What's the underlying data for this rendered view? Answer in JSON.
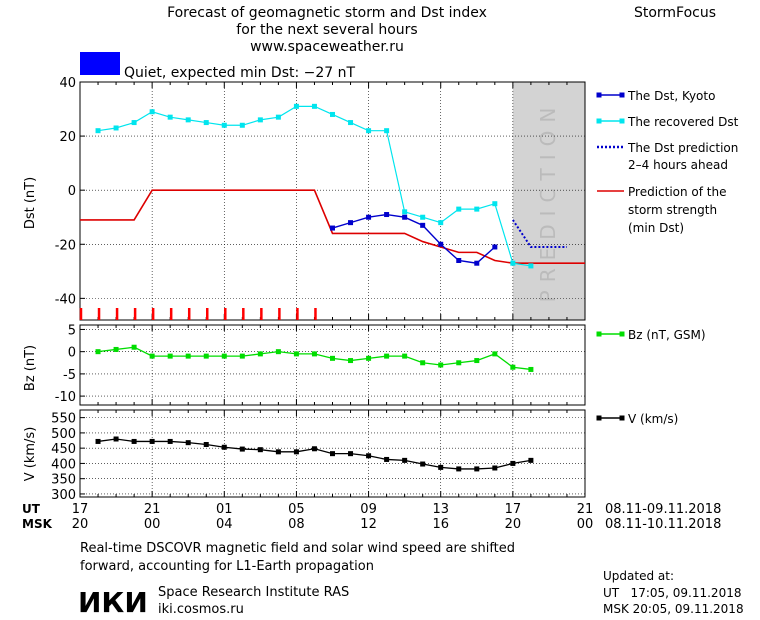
{
  "header": {
    "title_lines": [
      "Forecast of geomagnetic storm and Dst index",
      "for the next several hours",
      "www.spaceweather.ru"
    ],
    "brand": "StormFocus",
    "status_text": "Quiet, expected min Dst: −27 nT",
    "status_color": "#0000ff"
  },
  "colors": {
    "dst_kyoto": "#0000cc",
    "recovered_dst": "#00e5ee",
    "dst_prediction": "#0000cc",
    "storm_strength": "#dd0000",
    "bz": "#00dd00",
    "v": "#000000",
    "prediction_band": "#d3d3d3",
    "prediction_text": "#bbbbbb",
    "markers": "#ff0000"
  },
  "prediction_label": "PREDICTION",
  "legend": {
    "dst_kyoto": "The Dst, Kyoto",
    "recovered": "The recovered Dst",
    "prediction_1": "The Dst prediction",
    "prediction_2": "2–4 hours ahead",
    "storm_1": "Prediction of the",
    "storm_2": "storm strength",
    "storm_3": "(min Dst)",
    "bz": "Bz (nT, GSM)",
    "v": "V (km/s)"
  },
  "time_axis": {
    "ut_label": "UT",
    "msk_label": "MSK",
    "ut_ticks": [
      "17",
      "21",
      "01",
      "05",
      "09",
      "13",
      "17",
      "21"
    ],
    "msk_ticks": [
      "20",
      "00",
      "04",
      "08",
      "12",
      "16",
      "20",
      "00"
    ],
    "ut_range": "08.11-09.11.2018",
    "msk_range": "08.11-10.11.2018"
  },
  "footer": {
    "note_1": "Real-time DSCOVR magnetic field and solar wind speed are shifted",
    "note_2": "forward, accounting for L1-Earth propagation",
    "logo": "ИКИ",
    "org": "Space Research Institute RAS",
    "site": "iki.cosmos.ru",
    "updated_label": "Updated at:",
    "updated_ut": "UT   17:05, 09.11.2018",
    "updated_msk": "MSK 20:05, 09.11.2018"
  },
  "chart_data": [
    {
      "type": "line",
      "ylabel": "Dst (nT)",
      "x_unit": "hours from 17 UT 08.11.2018",
      "xlim": [
        0,
        28
      ],
      "ylim": [
        -48,
        40
      ],
      "yticks": [
        40,
        20,
        0,
        -20,
        -40
      ],
      "prediction_region": [
        24,
        28
      ],
      "series": [
        {
          "name": "The Dst, Kyoto",
          "x": [
            14,
            15,
            16,
            17,
            18,
            19,
            20,
            21,
            22,
            23
          ],
          "y": [
            -14,
            -12,
            -10,
            -9,
            -10,
            -13,
            -20,
            -26,
            -27,
            -21
          ]
        },
        {
          "name": "The recovered Dst",
          "x": [
            1,
            2,
            3,
            4,
            5,
            6,
            7,
            8,
            9,
            10,
            11,
            12,
            13,
            14,
            15,
            16,
            17,
            18,
            19,
            20,
            21,
            22,
            23,
            24,
            25
          ],
          "y": [
            22,
            23,
            25,
            29,
            27,
            26,
            25,
            24,
            24,
            26,
            27,
            31,
            31,
            28,
            25,
            22,
            22,
            -8,
            -10,
            -12,
            -7,
            -7,
            -5,
            -27,
            -28
          ]
        },
        {
          "name": "The Dst prediction 2-4 hours ahead",
          "x": [
            24,
            25,
            26,
            27
          ],
          "y": [
            -11,
            -21,
            -21,
            -21
          ]
        },
        {
          "name": "Prediction of the storm strength (min Dst)",
          "x": [
            0,
            3,
            4,
            13,
            14,
            18,
            19,
            20,
            21,
            22,
            23,
            24,
            28
          ],
          "y": [
            -11,
            -11,
            0,
            0,
            -16,
            -16,
            -19,
            -21,
            -23,
            -23,
            -26,
            -27,
            -27
          ]
        }
      ],
      "storm_markers_x": [
        0,
        1,
        2,
        3,
        4,
        5,
        6,
        7,
        8,
        9,
        10,
        11,
        12,
        13
      ]
    },
    {
      "type": "line",
      "ylabel": "Bz (nT)",
      "ylim": [
        -12,
        6
      ],
      "yticks": [
        5,
        0,
        -5,
        -10
      ],
      "series": [
        {
          "name": "Bz (nT, GSM)",
          "x": [
            1,
            2,
            3,
            4,
            5,
            6,
            7,
            8,
            9,
            10,
            11,
            12,
            13,
            14,
            15,
            16,
            17,
            18,
            19,
            20,
            21,
            22,
            23,
            24,
            25
          ],
          "y": [
            0,
            0.5,
            1,
            -1,
            -1,
            -1,
            -1,
            -1,
            -1,
            -0.5,
            0,
            -0.5,
            -0.5,
            -1.5,
            -2,
            -1.5,
            -1,
            -1,
            -2.5,
            -3,
            -2.5,
            -2,
            -0.5,
            -3.5,
            -4
          ]
        }
      ]
    },
    {
      "type": "line",
      "ylabel": "V (km/s)",
      "ylim": [
        290,
        575
      ],
      "yticks": [
        550,
        500,
        450,
        400,
        350,
        300
      ],
      "series": [
        {
          "name": "V (km/s)",
          "x": [
            1,
            2,
            3,
            4,
            5,
            6,
            7,
            8,
            9,
            10,
            11,
            12,
            13,
            14,
            15,
            16,
            17,
            18,
            19,
            20,
            21,
            22,
            23,
            24,
            25
          ],
          "y": [
            472,
            480,
            472,
            472,
            472,
            468,
            462,
            453,
            447,
            445,
            438,
            438,
            448,
            432,
            432,
            425,
            413,
            410,
            398,
            387,
            382,
            382,
            385,
            400,
            410
          ]
        }
      ]
    }
  ]
}
